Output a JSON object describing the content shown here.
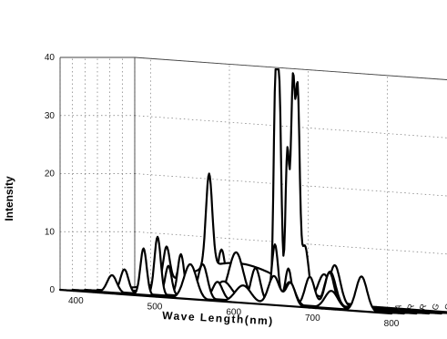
{
  "chart_data": {
    "type": "line",
    "style": "3d-waterfall",
    "xlabel": "Wave Length(nm)",
    "ylabel": "Intensity",
    "x_ticks": [
      "400",
      "500",
      "600",
      "700",
      "800"
    ],
    "y_ticks": [
      "0",
      "10",
      "20",
      "30",
      "40"
    ],
    "xlim": [
      380,
      800
    ],
    "ylim": [
      0,
      40
    ],
    "grid": true,
    "series": [
      {
        "name": "A",
        "peaks": [
          [
            545,
            6,
            8
          ],
          [
            612,
            3,
            10
          ],
          [
            651,
            5,
            7
          ],
          [
            672,
            4,
            6
          ],
          [
            762,
            6,
            7
          ]
        ]
      },
      {
        "name": "R",
        "peaks": [
          [
            430,
            3,
            6
          ],
          [
            470,
            8,
            4
          ],
          [
            545,
            6,
            6
          ],
          [
            612,
            6,
            6
          ],
          [
            655,
            4,
            7
          ],
          [
            708,
            3,
            8
          ]
        ]
      },
      {
        "name": "R",
        "peaks": [
          [
            430,
            4,
            5
          ],
          [
            472,
            10,
            4
          ],
          [
            548,
            3,
            6
          ],
          [
            625,
            2,
            7
          ],
          [
            665,
            5,
            6
          ],
          [
            690,
            6,
            6
          ]
        ]
      },
      {
        "name": "G",
        "peaks": [
          [
            470,
            5,
            4
          ],
          [
            540,
            3,
            10
          ],
          [
            605,
            10,
            4
          ],
          [
            622,
            6,
            4
          ],
          [
            675,
            6,
            7
          ]
        ]
      },
      {
        "name": "G",
        "peaks": [
          [
            470,
            7,
            4
          ],
          [
            540,
            8,
            9
          ],
          [
            590,
            37,
            2.5
          ],
          [
            595,
            33,
            2.5
          ],
          [
            605,
            26,
            2.5
          ],
          [
            612,
            37,
            2.5
          ],
          [
            618,
            34,
            2.5
          ],
          [
            627,
            10,
            5
          ],
          [
            665,
            7,
            7
          ]
        ]
      },
      {
        "name": "B",
        "peaks": [
          [
            436,
            6,
            4
          ],
          [
            490,
            16,
            4
          ],
          [
            525,
            6,
            60
          ]
        ]
      },
      {
        "name": "B",
        "peaks": [
          [
            436,
            4,
            4
          ],
          [
            490,
            8,
            5
          ],
          [
            620,
            5,
            8
          ]
        ]
      }
    ]
  }
}
